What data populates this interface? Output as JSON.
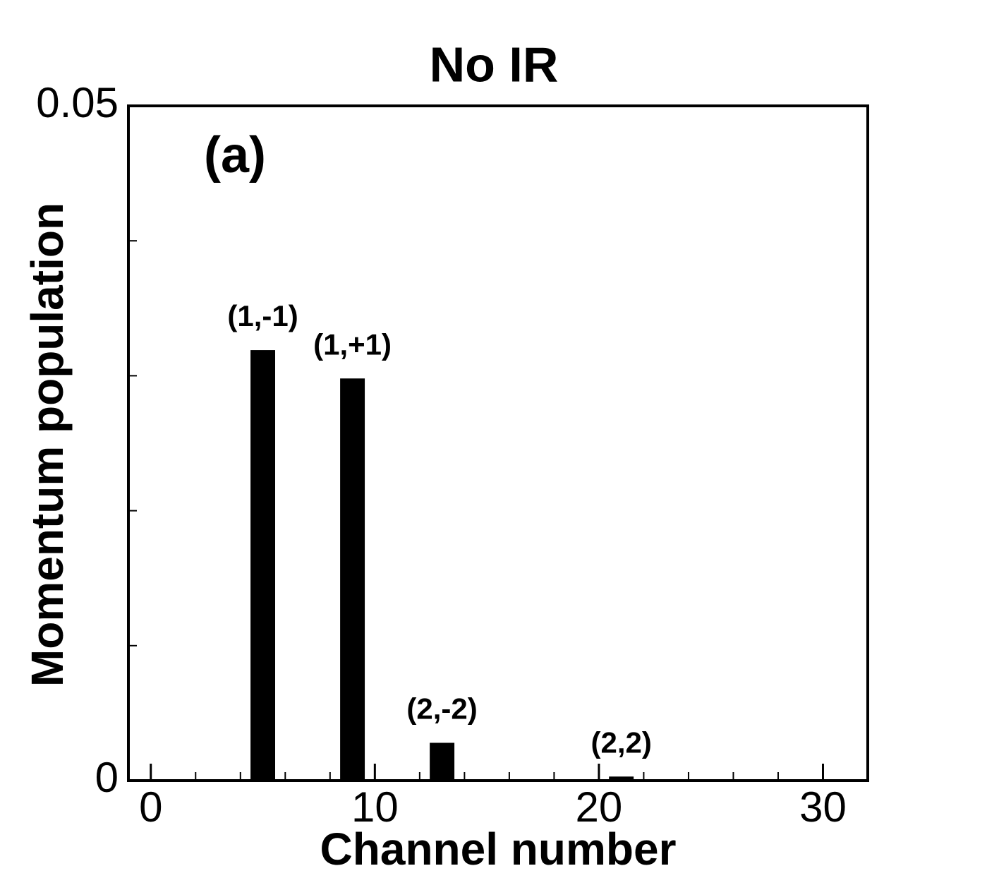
{
  "chart_data": {
    "type": "bar",
    "title": "No IR",
    "panel_label": "(a)",
    "xlabel": "Channel number",
    "ylabel": "Momentum population",
    "x": [
      5,
      9,
      13,
      21
    ],
    "values": [
      0.0319,
      0.0298,
      0.0028,
      0.0003
    ],
    "bar_labels": [
      "(1,-1)",
      "(1,+1)",
      "(2,-2)",
      "(2,2)"
    ],
    "color": "#000000",
    "xlim": [
      -1,
      32
    ],
    "xticks": [
      0,
      10,
      20,
      30
    ],
    "x_minor_ticks": [
      2,
      4,
      6,
      8,
      12,
      14,
      16,
      18,
      22,
      24,
      26,
      28
    ],
    "ylim": [
      0,
      0.05
    ],
    "yticks": [
      0,
      0.05
    ],
    "y_minor_ticks": [
      0.01,
      0.02,
      0.03,
      0.04
    ],
    "grid": false
  }
}
